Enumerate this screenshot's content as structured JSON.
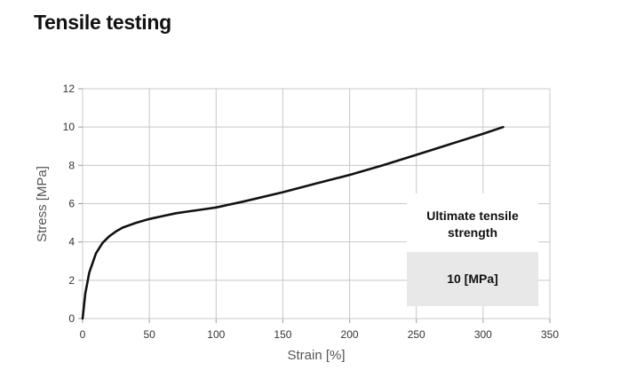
{
  "page": {
    "title": "Tensile testing"
  },
  "annotation": {
    "title": "Ultimate tensile strength",
    "value": "10 [MPa]"
  },
  "chart_data": {
    "type": "line",
    "title": "",
    "xlabel": "Strain [%]",
    "ylabel": "Stress  [MPa]",
    "xlim": [
      0,
      350
    ],
    "ylim": [
      0,
      12
    ],
    "xticks": [
      0,
      50,
      100,
      150,
      200,
      250,
      300,
      350
    ],
    "yticks": [
      0,
      2,
      4,
      6,
      8,
      10,
      12
    ],
    "grid": true,
    "line_color": "#111111",
    "series": [
      {
        "x": [
          0,
          2,
          5,
          10,
          15,
          20,
          25,
          30,
          40,
          50,
          60,
          70,
          80,
          90,
          100,
          120,
          150,
          175,
          200,
          225,
          250,
          275,
          300,
          315
        ],
        "y": [
          0,
          1.3,
          2.4,
          3.4,
          3.95,
          4.3,
          4.55,
          4.75,
          5.0,
          5.2,
          5.35,
          5.5,
          5.6,
          5.7,
          5.8,
          6.1,
          6.6,
          7.05,
          7.5,
          8.0,
          8.55,
          9.1,
          9.65,
          10.0
        ]
      }
    ]
  }
}
